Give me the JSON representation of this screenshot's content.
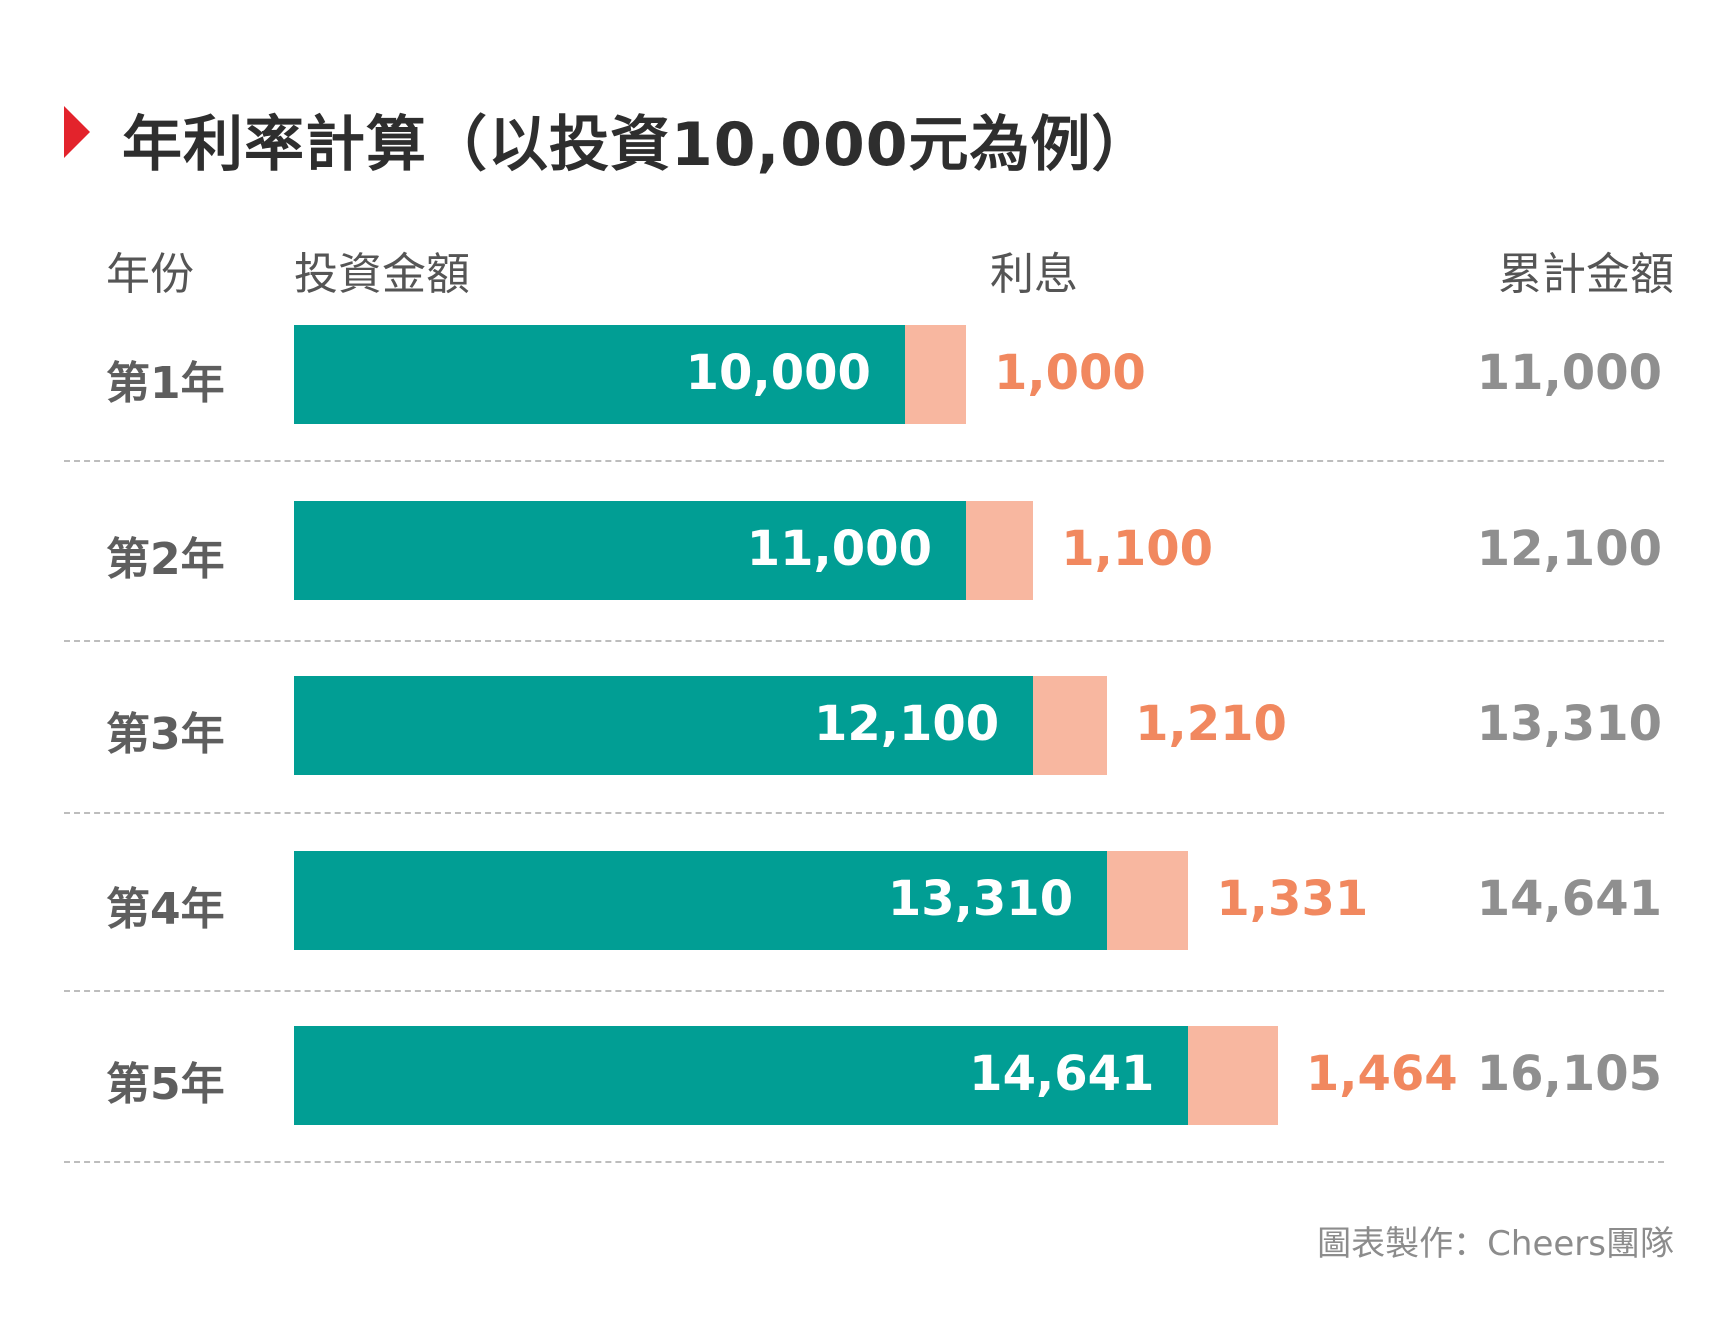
{
  "title": "年利率計算（以投資10,000元為例）",
  "headers": {
    "year": "年份",
    "principal": "投資金額",
    "interest": "利息",
    "total": "累計金額"
  },
  "colors": {
    "principal": "#019e94",
    "interest": "#f8b7a0",
    "interest_text": "#f1885f",
    "total_text": "#8f8f8f",
    "marker": "#e3232c"
  },
  "footer": "圖表製作：Cheers團隊",
  "chart_data": {
    "type": "bar",
    "orientation": "horizontal",
    "stacked": true,
    "categories": [
      "第1年",
      "第2年",
      "第3年",
      "第4年",
      "第5年"
    ],
    "series": [
      {
        "name": "投資金額",
        "values": [
          10000,
          11000,
          12100,
          13310,
          14641
        ],
        "labels": [
          "10,000",
          "11,000",
          "12,100",
          "13,310",
          "14,641"
        ]
      },
      {
        "name": "利息",
        "values": [
          1000,
          1100,
          1210,
          1331,
          1464
        ],
        "labels": [
          "1,000",
          "1,100",
          "1,210",
          "1,331",
          "1,464"
        ]
      }
    ],
    "totals": [
      11000,
      12100,
      13310,
      14641,
      16105
    ],
    "total_labels": [
      "11,000",
      "12,100",
      "13,310",
      "14,641",
      "16,105"
    ],
    "xlim": [
      0,
      16105
    ],
    "grid": false,
    "legend": "none"
  }
}
